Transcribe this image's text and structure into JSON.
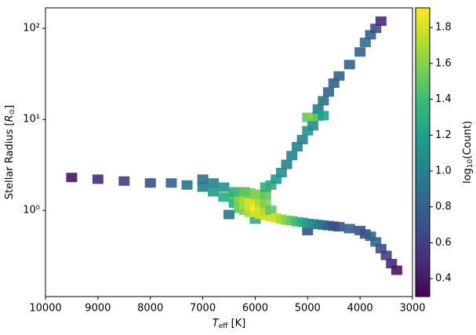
{
  "chart_data": {
    "type": "hist2d",
    "xlabel": {
      "symbol": "T",
      "subscript": "eff",
      "unit": " [K]"
    },
    "ylabel": {
      "text": "Stellar Radius [",
      "symbol": "R",
      "subscript": "⊙",
      "close": "]"
    },
    "colorbar_label": {
      "text": "log",
      "subscript": "10",
      "close": "(Count)"
    },
    "colormap": "viridis",
    "xlim": [
      10000,
      3000
    ],
    "xticks": [
      10000,
      9000,
      8000,
      7000,
      6000,
      5000,
      4000,
      3000
    ],
    "ylim": [
      0.113,
      168
    ],
    "yscale": "log",
    "yticks": [
      {
        "value": 1,
        "label": "10⁰"
      },
      {
        "value": 10,
        "label": "10¹"
      },
      {
        "value": 100,
        "label": "10²"
      }
    ],
    "clim": [
      0.3,
      1.91
    ],
    "cticks": [
      0.4,
      0.6,
      0.8,
      {
        "value": 1,
        "label": "1.0"
      },
      1.2,
      1.4,
      1.6,
      1.8
    ],
    "cells": [
      [
        9500,
        2.3,
        0.4
      ],
      [
        9000,
        2.2,
        0.5
      ],
      [
        8500,
        2.1,
        0.6
      ],
      [
        8000,
        2.0,
        0.7
      ],
      [
        7600,
        2.0,
        0.8
      ],
      [
        7300,
        1.9,
        0.9
      ],
      [
        7000,
        1.8,
        1.0
      ],
      [
        7000,
        2.2,
        0.9
      ],
      [
        6800,
        1.6,
        1.2
      ],
      [
        6800,
        2.0,
        1.0
      ],
      [
        6600,
        1.4,
        1.3
      ],
      [
        6600,
        1.8,
        1.1
      ],
      [
        6500,
        0.9,
        0.9
      ],
      [
        6000,
        0.8,
        1.3
      ],
      [
        5000,
        0.6,
        0.7
      ],
      [
        6400,
        1.2,
        1.3
      ],
      [
        6400,
        1.4,
        1.4
      ],
      [
        6400,
        1.6,
        1.3
      ],
      [
        6300,
        1.05,
        1.5
      ],
      [
        6300,
        1.2,
        1.6
      ],
      [
        6300,
        1.4,
        1.6
      ],
      [
        6300,
        1.6,
        1.4
      ],
      [
        6200,
        1.0,
        1.6
      ],
      [
        6200,
        1.15,
        1.7
      ],
      [
        6200,
        1.35,
        1.7
      ],
      [
        6200,
        1.6,
        1.5
      ],
      [
        6100,
        0.95,
        1.7
      ],
      [
        6100,
        1.1,
        1.8
      ],
      [
        6100,
        1.3,
        1.8
      ],
      [
        6100,
        1.55,
        1.5
      ],
      [
        6000,
        0.95,
        1.8
      ],
      [
        6000,
        1.1,
        1.9
      ],
      [
        6000,
        1.3,
        1.8
      ],
      [
        6000,
        1.5,
        1.6
      ],
      [
        5900,
        0.9,
        1.8
      ],
      [
        5900,
        1.05,
        1.8
      ],
      [
        5900,
        1.25,
        1.7
      ],
      [
        5900,
        1.5,
        1.6
      ],
      [
        5800,
        0.88,
        1.8
      ],
      [
        5800,
        1.0,
        1.7
      ],
      [
        5800,
        1.2,
        1.6
      ],
      [
        5800,
        1.5,
        1.5
      ],
      [
        5800,
        1.8,
        1.3
      ],
      [
        5700,
        0.85,
        1.8
      ],
      [
        5700,
        1.0,
        1.5
      ],
      [
        5700,
        1.9,
        1.3
      ],
      [
        5600,
        0.83,
        1.8
      ],
      [
        5600,
        2.2,
        1.2
      ],
      [
        5500,
        0.8,
        1.7
      ],
      [
        5500,
        2.6,
        1.1
      ],
      [
        5400,
        0.78,
        1.6
      ],
      [
        5400,
        3.2,
        1.0
      ],
      [
        5300,
        0.77,
        1.5
      ],
      [
        5300,
        4.0,
        1.0
      ],
      [
        5200,
        0.75,
        1.4
      ],
      [
        5200,
        5.0,
        1.0
      ],
      [
        5100,
        0.74,
        1.3
      ],
      [
        5100,
        6.0,
        1.0
      ],
      [
        5000,
        0.72,
        1.2
      ],
      [
        5000,
        7.5,
        1.1
      ],
      [
        5000,
        10.5,
        1.5
      ],
      [
        4900,
        0.71,
        1.1
      ],
      [
        4900,
        10.5,
        1.6
      ],
      [
        4900,
        8.5,
        1.1
      ],
      [
        4800,
        0.7,
        1.0
      ],
      [
        4800,
        10.8,
        1.5
      ],
      [
        4800,
        13,
        1.0
      ],
      [
        4700,
        0.69,
        0.9
      ],
      [
        4700,
        11,
        1.2
      ],
      [
        4700,
        16,
        0.9
      ],
      [
        4600,
        0.68,
        0.8
      ],
      [
        4600,
        20,
        0.8
      ],
      [
        4500,
        0.67,
        0.7
      ],
      [
        4500,
        25,
        0.8
      ],
      [
        4400,
        0.66,
        0.7
      ],
      [
        4400,
        30,
        0.8
      ],
      [
        4200,
        0.63,
        0.8
      ],
      [
        4200,
        40,
        0.8
      ],
      [
        4000,
        0.6,
        0.7
      ],
      [
        4000,
        55,
        0.8
      ],
      [
        3900,
        0.55,
        0.7
      ],
      [
        3900,
        70,
        0.9
      ],
      [
        3800,
        0.52,
        0.8
      ],
      [
        3800,
        85,
        0.8
      ],
      [
        3700,
        0.45,
        0.8
      ],
      [
        3700,
        100,
        0.7
      ],
      [
        3600,
        0.38,
        0.7
      ],
      [
        3600,
        120,
        0.5
      ],
      [
        3500,
        0.32,
        0.6
      ],
      [
        3400,
        0.26,
        0.5
      ],
      [
        3300,
        0.22,
        0.4
      ]
    ]
  }
}
